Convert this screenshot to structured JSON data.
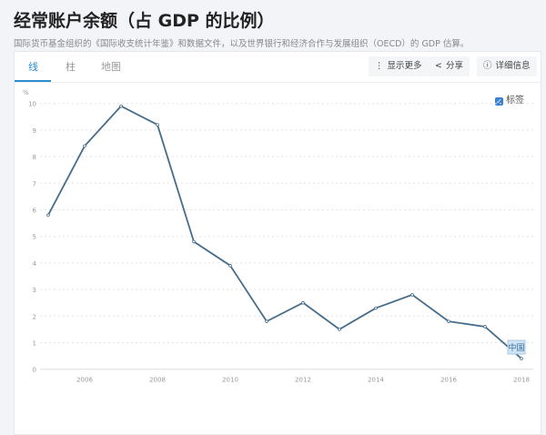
{
  "page": {
    "title": "经常账户余额（占 GDP 的比例）",
    "subtitle": "国际货币基金组织的《国际收支统计年鉴》和数据文件，以及世界银行和经济合作与发展组织（OECD）的 GDP 估算。"
  },
  "tabs": [
    {
      "label": "线",
      "active": true
    },
    {
      "label": "柱"
    },
    {
      "label": "地图"
    }
  ],
  "toolbar": {
    "more": "显示更多",
    "share": "分享",
    "details": "详细信息",
    "more_icon": "vertical-ellipsis",
    "share_icon": "share",
    "details_icon": "info-circle"
  },
  "labels_toggle": {
    "label": "标签",
    "checked": true
  },
  "chart_data": {
    "type": "line",
    "ylabel": "%",
    "ylim": [
      0,
      10
    ],
    "yticks": [
      "0",
      "1",
      "2",
      "3",
      "4",
      "5",
      "6",
      "7",
      "8",
      "9",
      "10"
    ],
    "xticks": [
      "2006",
      "2008",
      "2010",
      "2012",
      "2014",
      "2016",
      "2018"
    ],
    "grid": true,
    "line_color": "#466d8a",
    "series": [
      {
        "name": "中国",
        "x": [
          2005,
          2006,
          2007,
          2008,
          2009,
          2010,
          2011,
          2012,
          2013,
          2014,
          2015,
          2016,
          2017,
          2018
        ],
        "values": [
          5.8,
          8.4,
          9.9,
          9.2,
          4.8,
          3.9,
          1.8,
          2.5,
          1.5,
          2.3,
          2.8,
          1.8,
          1.6,
          0.4
        ]
      }
    ]
  }
}
